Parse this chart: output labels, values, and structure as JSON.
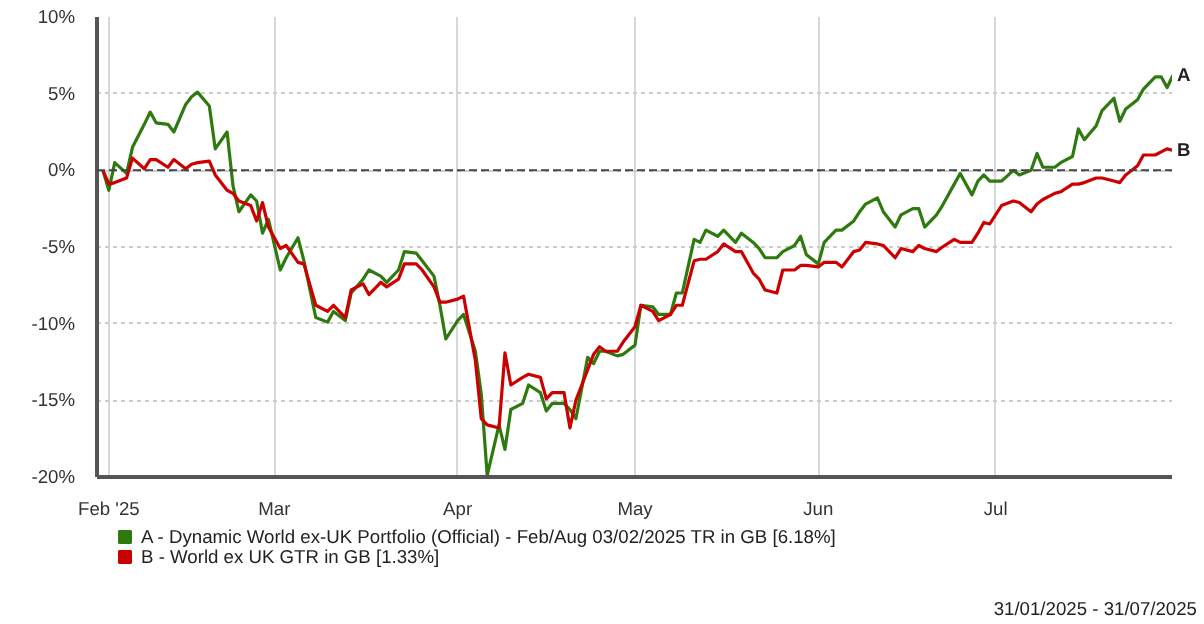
{
  "chart_data": {
    "type": "line",
    "x": [
      "2025-01-31",
      "2025-02-01",
      "2025-02-02",
      "2025-02-04",
      "2025-02-05",
      "2025-02-07",
      "2025-02-08",
      "2025-02-09",
      "2025-02-11",
      "2025-02-12",
      "2025-02-14",
      "2025-02-15",
      "2025-02-16",
      "2025-02-18",
      "2025-02-19",
      "2025-02-21",
      "2025-02-22",
      "2025-02-23",
      "2025-02-25",
      "2025-02-26",
      "2025-02-27",
      "2025-02-28",
      "2025-03-02",
      "2025-03-03",
      "2025-03-05",
      "2025-03-06",
      "2025-03-08",
      "2025-03-10",
      "2025-03-11",
      "2025-03-13",
      "2025-03-14",
      "2025-03-16",
      "2025-03-17",
      "2025-03-19",
      "2025-03-20",
      "2025-03-22",
      "2025-03-23",
      "2025-03-25",
      "2025-03-26",
      "2025-03-28",
      "2025-03-29",
      "2025-03-30",
      "2025-04-01",
      "2025-04-02",
      "2025-04-04",
      "2025-04-05",
      "2025-04-06",
      "2025-04-08",
      "2025-04-09",
      "2025-04-10",
      "2025-04-12",
      "2025-04-13",
      "2025-04-15",
      "2025-04-16",
      "2025-04-17",
      "2025-04-19",
      "2025-04-20",
      "2025-04-21",
      "2025-04-23",
      "2025-04-24",
      "2025-04-25",
      "2025-04-26",
      "2025-04-28",
      "2025-04-29",
      "2025-05-01",
      "2025-05-02",
      "2025-05-04",
      "2025-05-05",
      "2025-05-07",
      "2025-05-08",
      "2025-05-09",
      "2025-05-11",
      "2025-05-12",
      "2025-05-13",
      "2025-05-15",
      "2025-05-16",
      "2025-05-18",
      "2025-05-19",
      "2025-05-21",
      "2025-05-22",
      "2025-05-23",
      "2025-05-25",
      "2025-05-26",
      "2025-05-28",
      "2025-05-29",
      "2025-05-30",
      "2025-06-01",
      "2025-06-02",
      "2025-06-04",
      "2025-06-05",
      "2025-06-07",
      "2025-06-08",
      "2025-06-09",
      "2025-06-11",
      "2025-06-12",
      "2025-06-14",
      "2025-06-15",
      "2025-06-17",
      "2025-06-18",
      "2025-06-19",
      "2025-06-21",
      "2025-06-22",
      "2025-06-24",
      "2025-06-25",
      "2025-06-27",
      "2025-06-28",
      "2025-06-29",
      "2025-06-30",
      "2025-07-02",
      "2025-07-04",
      "2025-07-05",
      "2025-07-07",
      "2025-07-08",
      "2025-07-09",
      "2025-07-11",
      "2025-07-12",
      "2025-07-14",
      "2025-07-15",
      "2025-07-16",
      "2025-07-18",
      "2025-07-19",
      "2025-07-21",
      "2025-07-22",
      "2025-07-23",
      "2025-07-25",
      "2025-07-26",
      "2025-07-28",
      "2025-07-29",
      "2025-07-30",
      "2025-07-31"
    ],
    "series": [
      {
        "name": "A - Dynamic World ex-UK Portfolio (Official) - Feb/Aug 03/02/2025 TR in GB [6.18%]",
        "color": "#2f7a0f",
        "values": [
          0,
          -1.3,
          0.5,
          -0.2,
          1.5,
          3.0,
          3.8,
          3.1,
          3.0,
          2.5,
          4.3,
          4.8,
          5.1,
          4.2,
          1.4,
          2.5,
          -1.0,
          -2.7,
          -1.6,
          -2.0,
          -4.1,
          -3.2,
          -6.5,
          -5.7,
          -4.4,
          -5.9,
          -9.6,
          -9.9,
          -9.2,
          -9.8,
          -8.0,
          -7.1,
          -6.5,
          -6.9,
          -7.3,
          -6.5,
          -5.3,
          -5.4,
          -5.9,
          -6.9,
          -8.8,
          -11.0,
          -9.8,
          -9.4,
          -11.8,
          -14.6,
          -19.9,
          -16.6,
          -18.2,
          -15.6,
          -15.2,
          -14.0,
          -14.5,
          -15.7,
          -15.2,
          -15.2,
          -15.6,
          -16.2,
          -12.2,
          -12.6,
          -11.8,
          -11.8,
          -12.1,
          -12.0,
          -11.4,
          -8.8,
          -8.9,
          -9.4,
          -9.4,
          -8.0,
          -8.0,
          -4.5,
          -4.7,
          -3.9,
          -4.3,
          -3.9,
          -4.7,
          -4.1,
          -4.7,
          -5.1,
          -5.7,
          -5.7,
          -5.3,
          -4.9,
          -4.3,
          -5.5,
          -6.1,
          -4.7,
          -3.9,
          -3.9,
          -3.3,
          -2.7,
          -2.2,
          -1.8,
          -2.7,
          -3.7,
          -2.9,
          -2.5,
          -2.5,
          -3.7,
          -2.9,
          -2.3,
          -0.9,
          -0.2,
          -1.6,
          -0.7,
          -0.3,
          -0.7,
          -0.7,
          0.0,
          -0.3,
          0.0,
          1.1,
          0.2,
          0.2,
          0.5,
          0.9,
          2.7,
          2.0,
          2.9,
          3.9,
          4.7,
          3.2,
          4.0,
          4.6,
          5.3,
          6.1,
          6.1,
          5.4,
          6.2
        ]
      },
      {
        "name": "B - World ex UK GTR in GB [1.33%]",
        "color": "#cc0000",
        "values": [
          0,
          -0.9,
          -0.8,
          -0.5,
          0.8,
          0.1,
          0.7,
          0.7,
          0.2,
          0.7,
          0.1,
          0.4,
          0.5,
          0.6,
          -0.3,
          -1.3,
          -1.5,
          -2.0,
          -2.3,
          -3.3,
          -2.1,
          -3.7,
          -5.1,
          -4.9,
          -6.0,
          -6.1,
          -8.8,
          -9.2,
          -8.8,
          -9.6,
          -7.8,
          -7.4,
          -8.1,
          -7.3,
          -7.6,
          -7.1,
          -6.1,
          -6.1,
          -6.5,
          -7.6,
          -8.6,
          -8.6,
          -8.4,
          -8.2,
          -12.4,
          -16.2,
          -16.6,
          -16.8,
          -11.9,
          -14.0,
          -13.5,
          -13.3,
          -13.5,
          -14.9,
          -14.5,
          -14.5,
          -16.8,
          -15.0,
          -13.0,
          -12.0,
          -11.5,
          -11.8,
          -11.8,
          -11.2,
          -10.2,
          -8.8,
          -9.2,
          -9.8,
          -9.4,
          -8.8,
          -8.8,
          -5.9,
          -5.8,
          -5.8,
          -5.3,
          -4.8,
          -5.3,
          -5.3,
          -6.7,
          -7.1,
          -7.8,
          -8.0,
          -6.5,
          -6.5,
          -6.2,
          -6.2,
          -6.3,
          -6.0,
          -6.0,
          -6.3,
          -5.3,
          -5.2,
          -4.7,
          -4.8,
          -4.9,
          -5.7,
          -5.1,
          -5.3,
          -4.9,
          -5.1,
          -5.3,
          -5.0,
          -4.5,
          -4.7,
          -4.7,
          -4.1,
          -3.4,
          -3.5,
          -2.3,
          -2.0,
          -2.1,
          -2.7,
          -2.2,
          -1.9,
          -1.5,
          -1.4,
          -0.9,
          -0.9,
          -0.8,
          -0.5,
          -0.5,
          -0.7,
          -0.8,
          -0.3,
          0.3,
          1.0,
          1.0,
          1.2,
          1.4,
          1.3
        ]
      }
    ],
    "xlim": [
      "2025-01-30",
      "2025-07-31"
    ],
    "xticks": [
      {
        "value": "2025-02-01",
        "label": "Feb '25"
      },
      {
        "value": "2025-03-01",
        "label": "Mar"
      },
      {
        "value": "2025-04-01",
        "label": "Apr"
      },
      {
        "value": "2025-05-01",
        "label": "May"
      },
      {
        "value": "2025-06-01",
        "label": "Jun"
      },
      {
        "value": "2025-07-01",
        "label": "Jul"
      }
    ],
    "ylim": [
      -20,
      10
    ],
    "yticks": [
      {
        "value": -20,
        "label": "-20%"
      },
      {
        "value": -15,
        "label": "-15%"
      },
      {
        "value": -10,
        "label": "-10%"
      },
      {
        "value": -5,
        "label": "-5%"
      },
      {
        "value": 0,
        "label": "0%"
      },
      {
        "value": 5,
        "label": "5%"
      },
      {
        "value": 10,
        "label": "10%"
      }
    ],
    "ref_lines": [
      {
        "axis": "y",
        "value": 0,
        "color": "#444444",
        "line_style": "dashed"
      }
    ],
    "grid": true,
    "legend": "bottom",
    "annotations": [
      {
        "text": "A",
        "x": "2025-07-31",
        "y": 6.2
      },
      {
        "text": "B",
        "x": "2025-07-31",
        "y": 1.3
      },
      "31/01/2025 - 31/07/2025"
    ]
  }
}
